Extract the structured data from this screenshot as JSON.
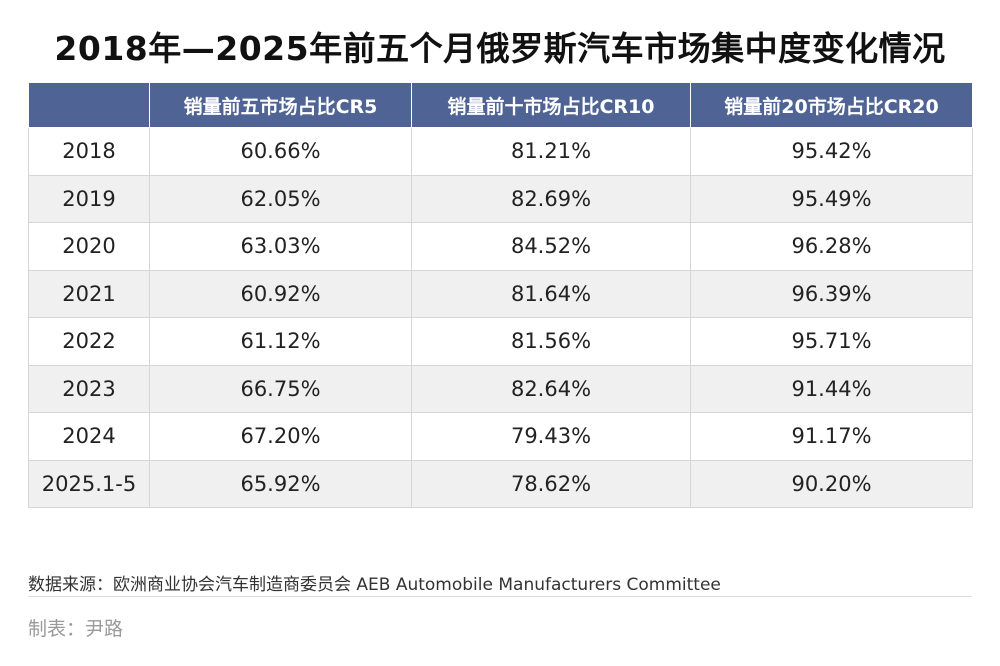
{
  "chart_data": {
    "type": "table",
    "title": "2018年—2025年前五个月俄罗斯汽车市场集中度变化情况",
    "columns": [
      "",
      "销量前五市场占比CR5",
      "销量前十市场占比CR10",
      "销量前20市场占比CR20"
    ],
    "rows": [
      [
        "2018",
        "60.66%",
        "81.21%",
        "95.42%"
      ],
      [
        "2019",
        "62.05%",
        "82.69%",
        "95.49%"
      ],
      [
        "2020",
        "63.03%",
        "84.52%",
        "96.28%"
      ],
      [
        "2021",
        "60.92%",
        "81.64%",
        "96.39%"
      ],
      [
        "2022",
        "61.12%",
        "81.56%",
        "95.71%"
      ],
      [
        "2023",
        "66.75%",
        "82.64%",
        "91.44%"
      ],
      [
        "2024",
        "67.20%",
        "79.43%",
        "91.17%"
      ],
      [
        "2025.1-5",
        "65.92%",
        "78.62%",
        "90.20%"
      ]
    ]
  },
  "footer": {
    "source": "数据来源：欧洲商业协会汽车制造商委员会 AEB Automobile Manufacturers Committee",
    "maker": "制表：尹路"
  },
  "colors": {
    "header_bg": "#4f6494",
    "header_text": "#ffffff",
    "stripe": "#f0f0f0"
  }
}
